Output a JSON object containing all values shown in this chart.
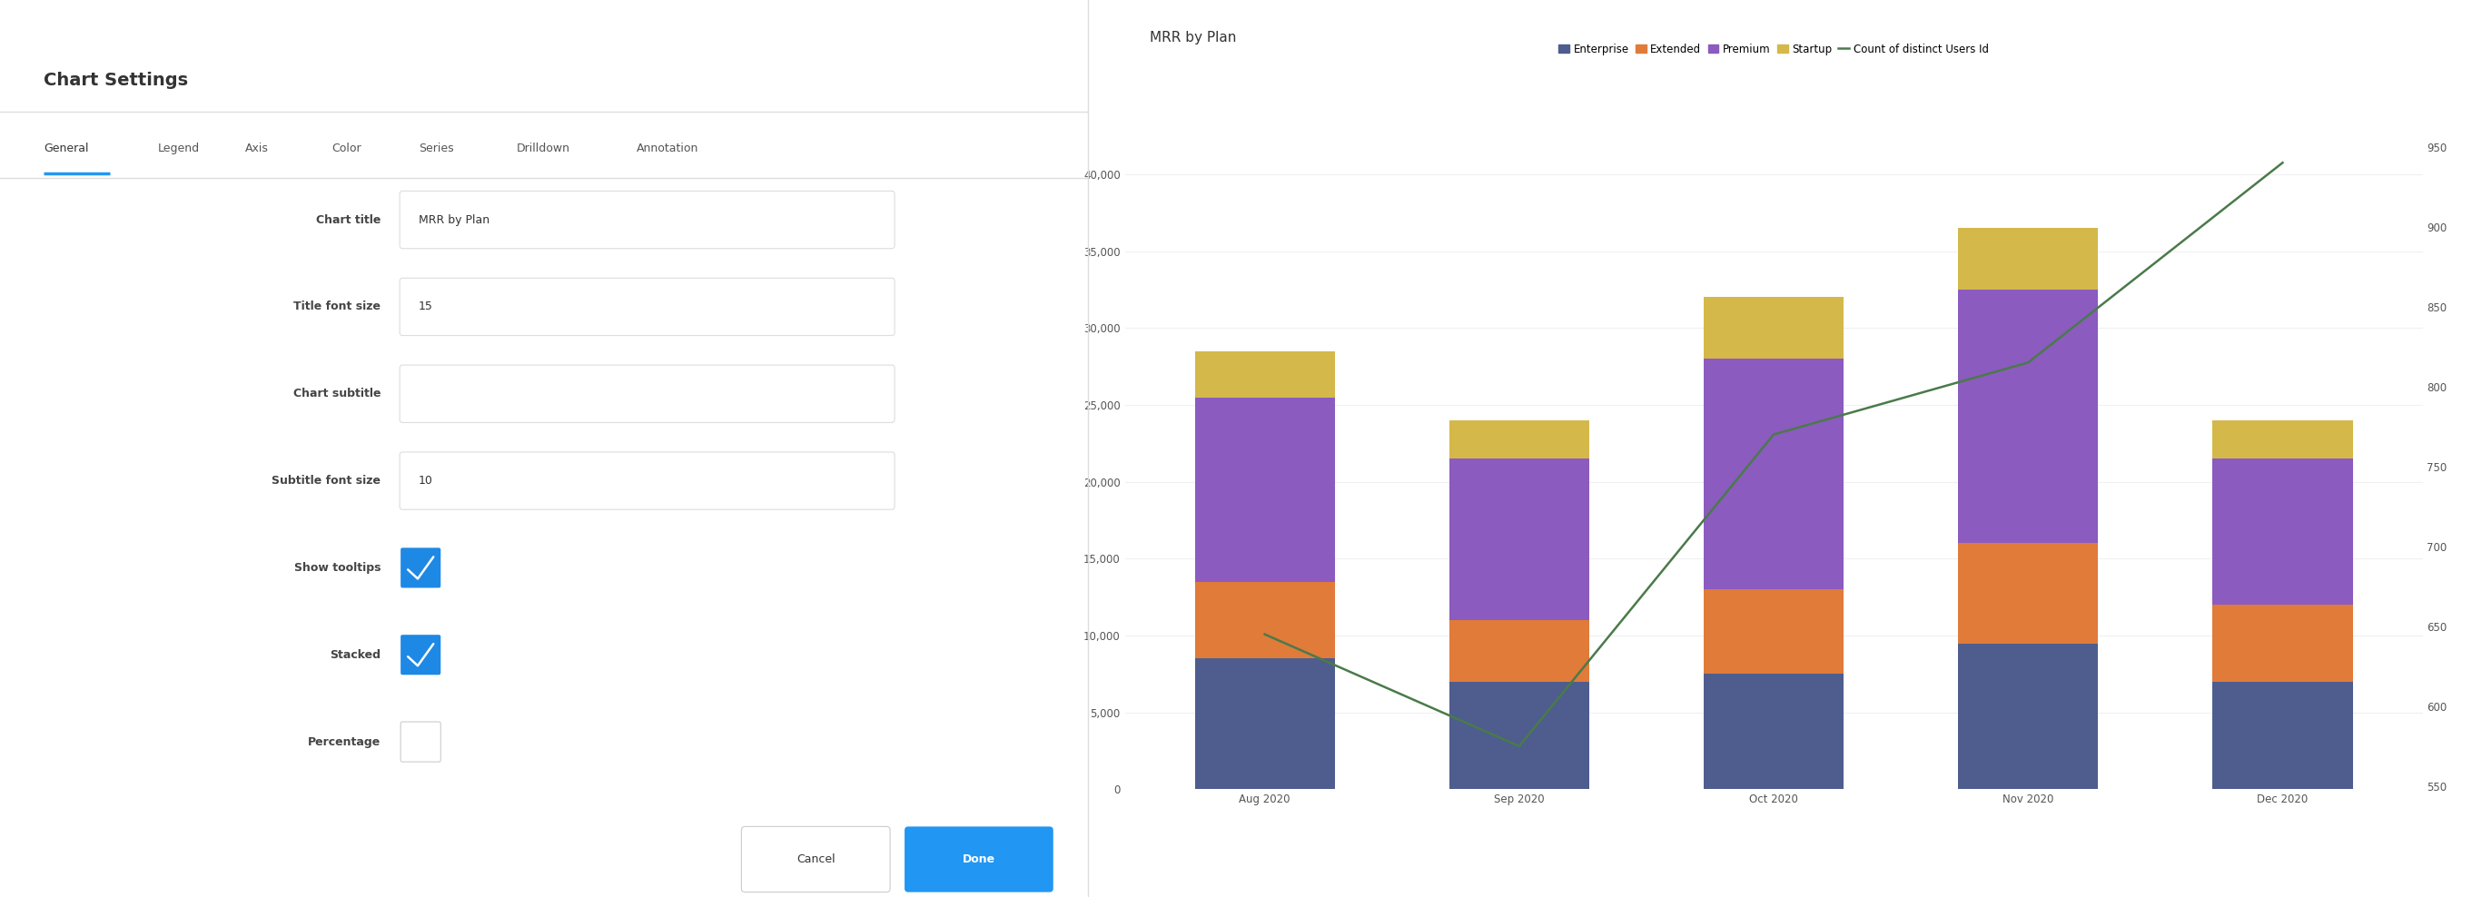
{
  "title": "Chart Settings",
  "tab_items": [
    "General",
    "Legend",
    "Axis",
    "Color",
    "Series",
    "Drilldown",
    "Annotation"
  ],
  "active_tab": "General",
  "form_fields": [
    {
      "label": "Chart title",
      "value": "MRR by Plan",
      "type": "text"
    },
    {
      "label": "Title font size",
      "value": "15",
      "type": "text"
    },
    {
      "label": "Chart subtitle",
      "value": "",
      "type": "text"
    },
    {
      "label": "Subtitle font size",
      "value": "10",
      "type": "text"
    },
    {
      "label": "Show tooltips",
      "value": true,
      "type": "checkbox"
    },
    {
      "label": "Stacked",
      "value": true,
      "type": "checkbox"
    },
    {
      "label": "Percentage",
      "value": false,
      "type": "checkbox"
    }
  ],
  "chart_title": "MRR by Plan",
  "chart_categories": [
    "Aug 2020",
    "Sep 2020",
    "Oct 2020",
    "Nov 2020",
    "Dec 2020"
  ],
  "bar_series": [
    {
      "name": "Enterprise",
      "color": "#4e5d8e",
      "values": [
        8500,
        7000,
        7500,
        9500,
        7000
      ]
    },
    {
      "name": "Extended",
      "color": "#e07b3a",
      "values": [
        5000,
        4000,
        5500,
        6500,
        5000
      ]
    },
    {
      "name": "Premium",
      "color": "#8b5bbf",
      "values": [
        12000,
        10500,
        15000,
        16500,
        9500
      ]
    },
    {
      "name": "Startup",
      "color": "#d4b84a",
      "values": [
        3000,
        2500,
        4000,
        4000,
        2500
      ]
    }
  ],
  "line_series": {
    "name": "Count of distinct Users Id",
    "color": "#4a7a4a",
    "values": [
      645,
      575,
      770,
      815,
      940
    ],
    "y_axis_min": 550,
    "y_axis_max": 950
  },
  "left_y_ticks": [
    0,
    5000,
    10000,
    15000,
    20000,
    25000,
    30000,
    35000,
    40000
  ],
  "right_y_ticks": [
    550,
    600,
    650,
    700,
    750,
    800,
    850,
    900,
    950
  ],
  "bg_color": "#ffffff",
  "border_color": "#cccccc",
  "text_color": "#333333",
  "label_color": "#444444",
  "tab_active_color": "#2196F3",
  "tab_text_color": "#555555",
  "button_done_color": "#2196F3",
  "checkbox_checked_color": "#1e88e5",
  "divider_color": "#dddddd",
  "input_border_color": "#dddddd",
  "input_bg": "#ffffff",
  "grid_color": "#f0f0f0"
}
